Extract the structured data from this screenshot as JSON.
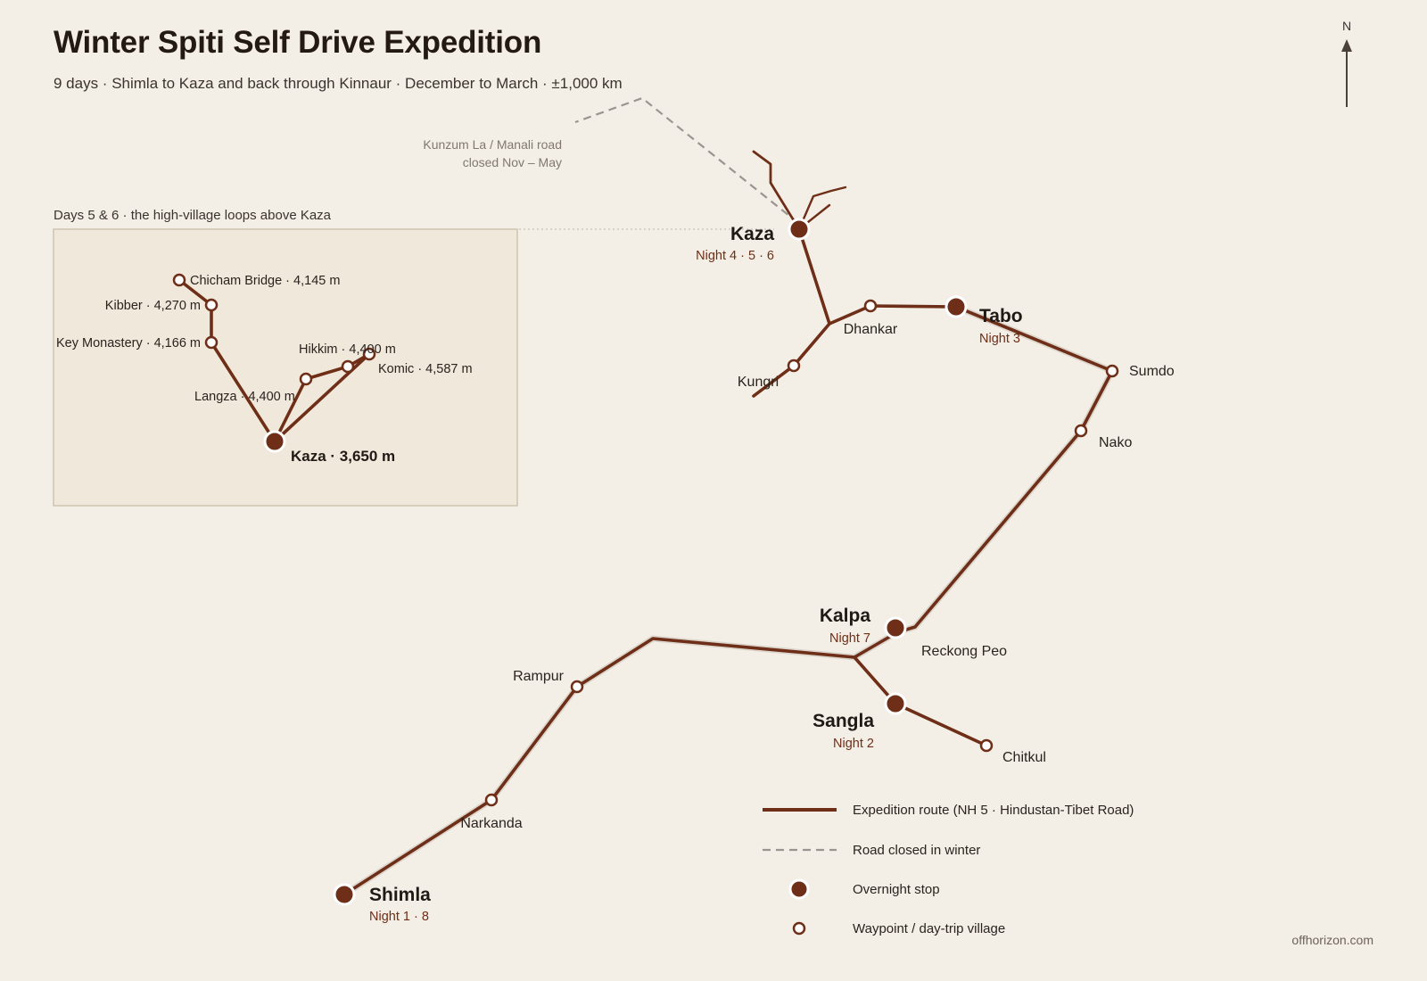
{
  "header": {
    "title": "Winter Spiti Self Drive Expedition",
    "subtitle": "9 days · Shimla to Kaza and back through Kinnaur · December to March · ±1,000 km"
  },
  "north": {
    "label": "N"
  },
  "closed_road": {
    "note_line1": "Kunzum La / Manali road",
    "note_line2": "closed Nov – May"
  },
  "stops": {
    "kaza": {
      "name": "Kaza",
      "nights": "Night 4 · 5 · 6"
    },
    "tabo": {
      "name": "Tabo",
      "nights": "Night 3"
    },
    "kalpa": {
      "name": "Kalpa",
      "nights": "Night 7"
    },
    "sangla": {
      "name": "Sangla",
      "nights": "Night 2"
    },
    "shimla": {
      "name": "Shimla",
      "nights": "Night 1 · 8"
    }
  },
  "waypoints": {
    "dhankar": "Dhankar",
    "kungri": "Kungri",
    "sumdo": "Sumdo",
    "nako": "Nako",
    "reckong_peo": "Reckong Peo",
    "rampur": "Rampur",
    "narkanda": "Narkanda",
    "chitkul": "Chitkul"
  },
  "inset": {
    "caption": "Days 5 & 6 · the high-village loops above Kaza",
    "base": "Kaza · 3,650 m",
    "villages": {
      "chicham": "Chicham Bridge · 4,145 m",
      "kibber": "Kibber · 4,270 m",
      "key_monastery": "Key Monastery · 4,166 m",
      "hikkim": "Hikkim · 4,400 m",
      "komic": "Komic · 4,587 m",
      "langza": "Langza · 4,400 m"
    }
  },
  "legend": {
    "route": "Expedition route (NH 5 · Hindustan-Tibet Road)",
    "closed": "Road closed in winter",
    "overnight": "Overnight stop",
    "waypoint": "Waypoint / day-trip village"
  },
  "credit": "offhorizon.com",
  "colors": {
    "background": "#f4efe6",
    "route": "#6e2e17",
    "closed_road": "#9a9591",
    "inset_fill": "#f0e8da",
    "inset_border": "#cfc4b0"
  }
}
